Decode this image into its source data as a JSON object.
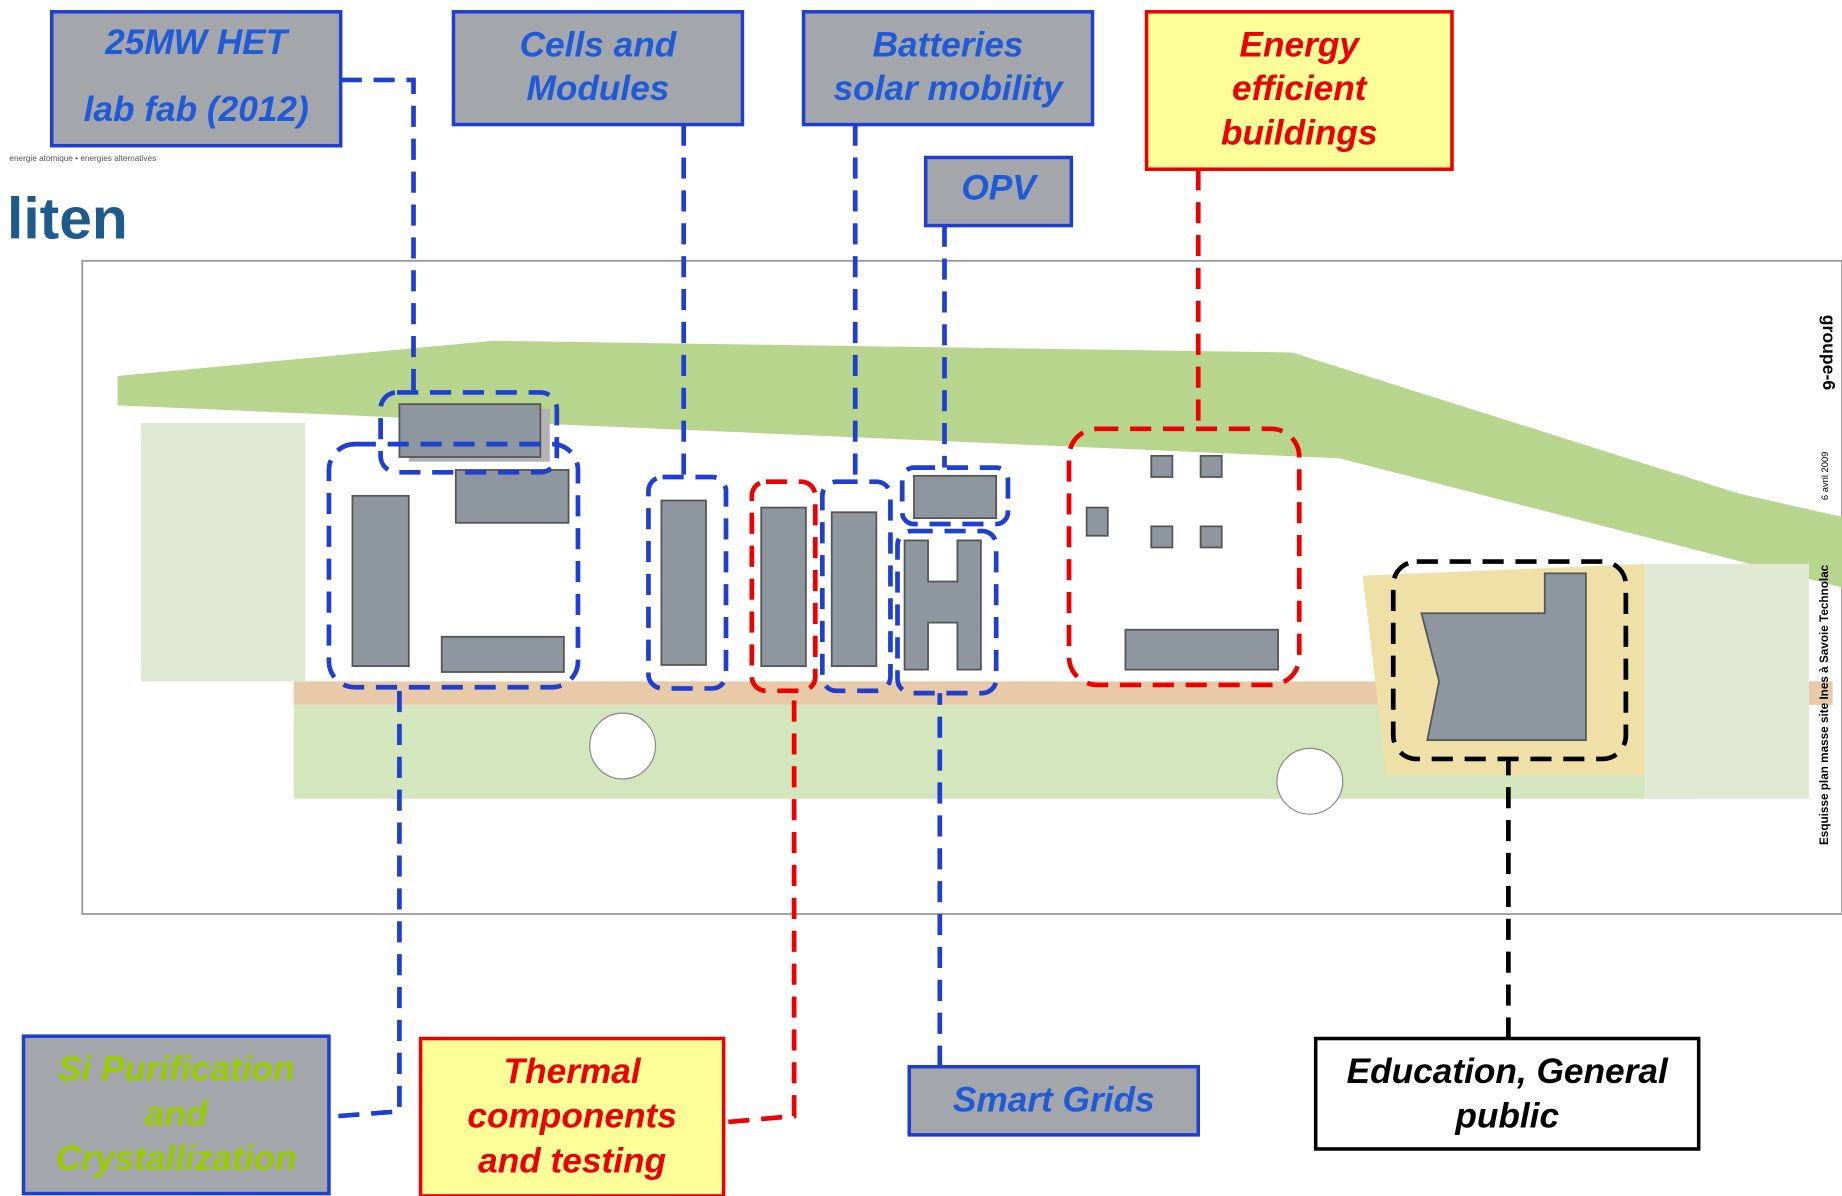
{
  "logo": {
    "tagline": "energie atomique • energies alternatives",
    "name": "liten"
  },
  "map": {
    "credit": "groupe-6",
    "date": "6 avril 2009",
    "caption": "Esquisse plan masse site Ines à Savoie Technolac"
  },
  "labels": [
    {
      "lines": [
        "25MW HET",
        "lab fab (2012)"
      ]
    },
    {
      "lines": [
        "Cells and",
        "Modules"
      ]
    },
    {
      "lines": [
        "Batteries",
        "solar mobility"
      ]
    },
    {
      "lines": [
        "Energy",
        "efficient",
        "buildings"
      ]
    },
    {
      "lines": [
        "OPV"
      ]
    },
    {
      "lines": [
        "Si Purification",
        "and",
        "Crystallization"
      ]
    },
    {
      "lines": [
        "Thermal",
        "components",
        "and testing"
      ]
    },
    {
      "lines": [
        "Smart Grids"
      ]
    },
    {
      "lines": [
        "Education, General",
        "public"
      ]
    }
  ]
}
